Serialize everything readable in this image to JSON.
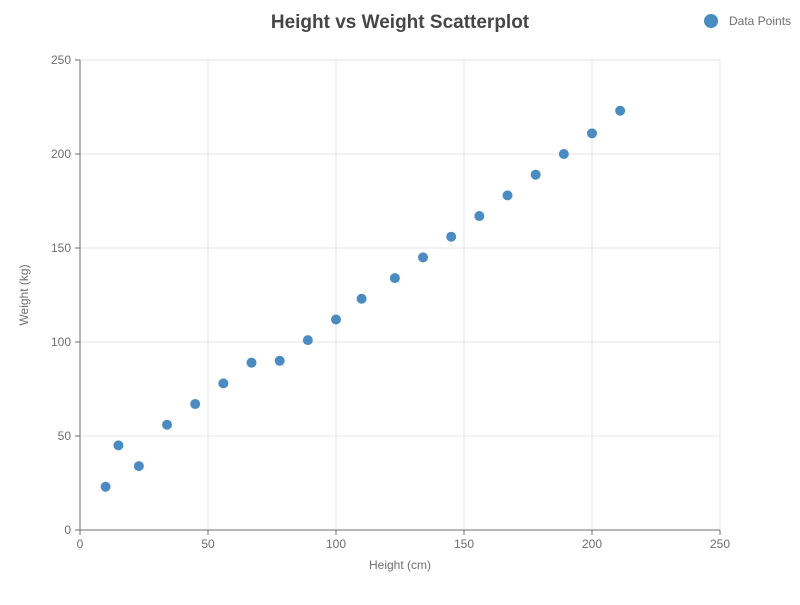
{
  "chart_data": {
    "type": "scatter",
    "title": "Height vs Weight Scatterplot",
    "xlabel": "Height (cm)",
    "ylabel": "Weight (kg)",
    "xlim": [
      0,
      250
    ],
    "ylim": [
      0,
      250
    ],
    "x_ticks": [
      0,
      50,
      100,
      150,
      200,
      250
    ],
    "y_ticks": [
      0,
      50,
      100,
      150,
      200,
      250
    ],
    "grid": true,
    "legend_position": "top-right",
    "series": [
      {
        "name": "Data Points",
        "color": "#4a8cc2",
        "points": [
          {
            "x": 10,
            "y": 23
          },
          {
            "x": 15,
            "y": 45
          },
          {
            "x": 23,
            "y": 34
          },
          {
            "x": 34,
            "y": 56
          },
          {
            "x": 45,
            "y": 67
          },
          {
            "x": 56,
            "y": 78
          },
          {
            "x": 67,
            "y": 89
          },
          {
            "x": 78,
            "y": 90
          },
          {
            "x": 89,
            "y": 101
          },
          {
            "x": 100,
            "y": 112
          },
          {
            "x": 110,
            "y": 123
          },
          {
            "x": 123,
            "y": 134
          },
          {
            "x": 134,
            "y": 145
          },
          {
            "x": 145,
            "y": 156
          },
          {
            "x": 156,
            "y": 167
          },
          {
            "x": 167,
            "y": 178
          },
          {
            "x": 178,
            "y": 189
          },
          {
            "x": 189,
            "y": 200
          },
          {
            "x": 200,
            "y": 211
          },
          {
            "x": 211,
            "y": 223
          }
        ]
      }
    ]
  },
  "colors": {
    "title": "#464646",
    "axis_text": "#6e6e6e",
    "axis_line": "#6e6e6e",
    "grid": "#e6e6e6"
  }
}
